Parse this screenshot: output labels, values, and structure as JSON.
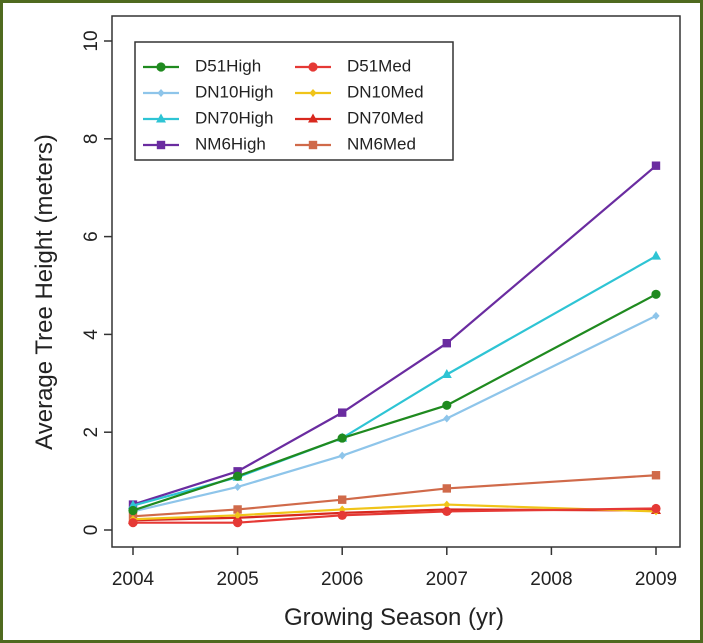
{
  "chart_data": {
    "type": "line",
    "xlabel": "Growing Season (yr)",
    "ylabel": "Average Tree Height (meters)",
    "x": [
      2004,
      2005,
      2006,
      2007,
      2009
    ],
    "x_ticks": [
      2004,
      2005,
      2006,
      2007,
      2008,
      2009
    ],
    "y_ticks": [
      0,
      2,
      4,
      6,
      8,
      10
    ],
    "xlim": [
      2004,
      2009
    ],
    "ylim": [
      0,
      10
    ],
    "grid": false,
    "legend_position": "top-left",
    "series": [
      {
        "name": "D51High",
        "color": "#1f8a1f",
        "marker": "circle",
        "values": [
          0.4,
          1.1,
          1.88,
          2.55,
          4.82
        ]
      },
      {
        "name": "DN10High",
        "color": "#8ec5ea",
        "marker": "diamond",
        "values": [
          0.38,
          0.88,
          1.52,
          2.28,
          4.38
        ]
      },
      {
        "name": "DN70High",
        "color": "#2ec4d4",
        "marker": "triangle",
        "values": [
          0.5,
          1.08,
          1.88,
          3.18,
          5.6
        ]
      },
      {
        "name": "NM6High",
        "color": "#6a2ca0",
        "marker": "square",
        "values": [
          0.52,
          1.2,
          2.4,
          3.82,
          7.45
        ]
      },
      {
        "name": "D51Med",
        "color": "#e53935",
        "marker": "circle",
        "values": [
          0.15,
          0.15,
          0.3,
          0.38,
          0.44
        ]
      },
      {
        "name": "DN10Med",
        "color": "#f0c419",
        "marker": "diamond",
        "values": [
          0.22,
          0.3,
          0.42,
          0.52,
          0.38
        ]
      },
      {
        "name": "DN70Med",
        "color": "#d8281e",
        "marker": "triangle",
        "values": [
          0.2,
          0.25,
          0.35,
          0.42,
          0.4
        ]
      },
      {
        "name": "NM6Med",
        "color": "#d06a4a",
        "marker": "square",
        "values": [
          0.28,
          0.42,
          0.62,
          0.85,
          1.12
        ]
      }
    ]
  }
}
